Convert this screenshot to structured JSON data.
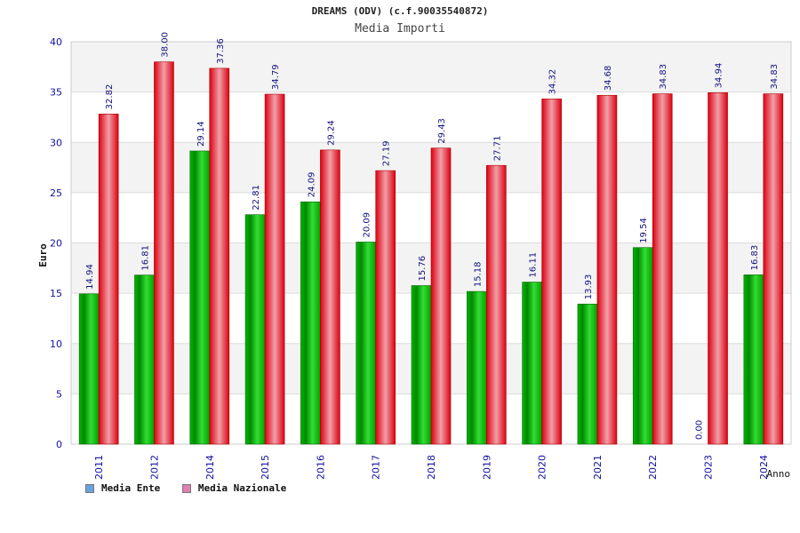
{
  "chart_data": {
    "type": "bar",
    "title": "DREAMS (ODV) (c.f.90035540872)",
    "subtitle": "Media Importi",
    "xlabel": "Anno",
    "ylabel": "Euro",
    "ylim": [
      0,
      40
    ],
    "yticks": [
      "0",
      "5",
      "10",
      "15",
      "20",
      "25",
      "30",
      "35",
      "40"
    ],
    "grid": true,
    "legend_position": "bottom-left",
    "categories": [
      "2011",
      "2012",
      "2014",
      "2015",
      "2016",
      "2017",
      "2018",
      "2019",
      "2020",
      "2021",
      "2022",
      "2023",
      "2024"
    ],
    "series": [
      {
        "name": "Media Ente",
        "color": "#00aa00",
        "legend_color": "#66a3e0",
        "values": [
          14.94,
          16.81,
          29.14,
          22.81,
          24.09,
          20.09,
          15.76,
          15.18,
          16.11,
          13.93,
          19.54,
          0.0,
          16.83
        ],
        "labels": [
          "14.94",
          "16.81",
          "29.14",
          "22.81",
          "24.09",
          "20.09",
          "15.76",
          "15.18",
          "16.11",
          "13.93",
          "19.54",
          "0.00",
          "16.83"
        ]
      },
      {
        "name": "Media Nazionale",
        "color": "#ee1122",
        "legend_color": "#e07fb0",
        "values": [
          32.82,
          38.0,
          37.36,
          34.79,
          29.24,
          27.19,
          29.43,
          27.71,
          34.32,
          34.68,
          34.83,
          34.94,
          34.83
        ],
        "labels": [
          "32.82",
          "38.00",
          "37.36",
          "34.79",
          "29.24",
          "27.19",
          "29.43",
          "27.71",
          "34.32",
          "34.68",
          "34.83",
          "34.94",
          "34.83"
        ]
      }
    ]
  }
}
